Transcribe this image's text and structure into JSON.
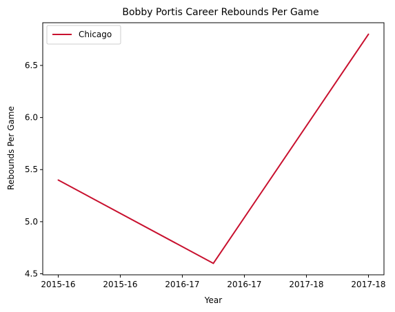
{
  "chart_data": {
    "type": "line",
    "title": "Bobby Portis Career Rebounds Per Game",
    "xlabel": "Year",
    "ylabel": "Rebounds Per Game",
    "x_ticks": [
      "2015-16",
      "2015-16",
      "2016-17",
      "2016-17",
      "2017-18",
      "2017-18"
    ],
    "x_tick_positions": [
      0,
      0.4,
      0.8,
      1.2,
      1.6,
      2.0
    ],
    "y_ticks": [
      "4.5",
      "5.0",
      "5.5",
      "6.0",
      "6.5"
    ],
    "y_tick_values": [
      4.5,
      5.0,
      5.5,
      6.0,
      6.5
    ],
    "xlim": [
      -0.1,
      2.1
    ],
    "ylim": [
      4.49,
      6.91
    ],
    "grid": false,
    "legend_position": "top-left",
    "series": [
      {
        "name": "Chicago",
        "color": "#c8102e",
        "x": [
          "2015-16",
          "2016-17",
          "2017-18"
        ],
        "x_pos": [
          0,
          1,
          2
        ],
        "y": [
          5.4,
          4.6,
          6.8
        ]
      }
    ]
  }
}
